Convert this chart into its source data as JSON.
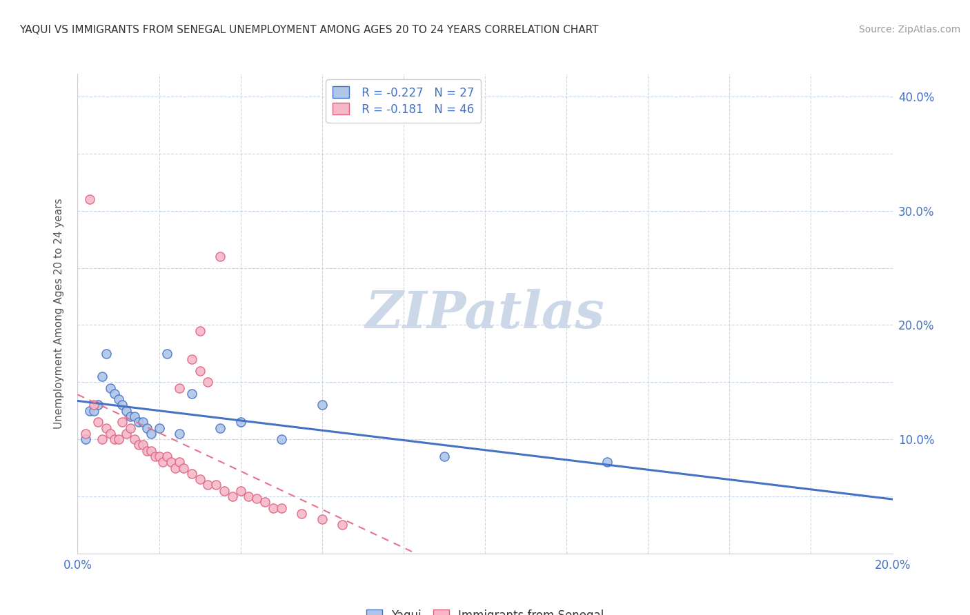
{
  "title": "YAQUI VS IMMIGRANTS FROM SENEGAL UNEMPLOYMENT AMONG AGES 20 TO 24 YEARS CORRELATION CHART",
  "source": "Source: ZipAtlas.com",
  "ylabel": "Unemployment Among Ages 20 to 24 years",
  "xmin": 0.0,
  "xmax": 0.2,
  "ymin": 0.0,
  "ymax": 0.42,
  "xtick_positions": [
    0.0,
    0.02,
    0.04,
    0.06,
    0.08,
    0.1,
    0.12,
    0.14,
    0.16,
    0.18,
    0.2
  ],
  "ytick_positions": [
    0.0,
    0.05,
    0.1,
    0.15,
    0.2,
    0.25,
    0.3,
    0.35,
    0.4
  ],
  "legend_r1": "R = -0.227",
  "legend_n1": "N = 27",
  "legend_r2": "R = -0.181",
  "legend_n2": "N = 46",
  "legend_label1": "Yaqui",
  "legend_label2": "Immigrants from Senegal",
  "yaqui_fill": "#aec6e8",
  "yaqui_edge": "#4472c4",
  "senegal_fill": "#f4b8c8",
  "senegal_edge": "#e06080",
  "yaqui_line_color": "#4472c4",
  "senegal_line_color": "#e87090",
  "watermark": "ZIPatlas",
  "watermark_color": "#ccd8e8",
  "yaqui_x": [
    0.002,
    0.003,
    0.004,
    0.005,
    0.006,
    0.007,
    0.008,
    0.009,
    0.01,
    0.011,
    0.012,
    0.013,
    0.014,
    0.015,
    0.016,
    0.017,
    0.018,
    0.02,
    0.022,
    0.025,
    0.028,
    0.035,
    0.04,
    0.05,
    0.06,
    0.09,
    0.13
  ],
  "yaqui_y": [
    0.1,
    0.125,
    0.125,
    0.13,
    0.155,
    0.175,
    0.145,
    0.14,
    0.135,
    0.13,
    0.125,
    0.12,
    0.12,
    0.115,
    0.115,
    0.11,
    0.105,
    0.11,
    0.175,
    0.105,
    0.14,
    0.11,
    0.115,
    0.1,
    0.13,
    0.085,
    0.08
  ],
  "senegal_x": [
    0.002,
    0.003,
    0.004,
    0.005,
    0.006,
    0.007,
    0.008,
    0.009,
    0.01,
    0.011,
    0.012,
    0.013,
    0.014,
    0.015,
    0.016,
    0.017,
    0.018,
    0.019,
    0.02,
    0.021,
    0.022,
    0.023,
    0.024,
    0.025,
    0.026,
    0.028,
    0.03,
    0.032,
    0.034,
    0.036,
    0.038,
    0.04,
    0.042,
    0.044,
    0.046,
    0.048,
    0.05,
    0.055,
    0.06,
    0.065,
    0.035,
    0.03,
    0.028,
    0.03,
    0.032,
    0.025
  ],
  "senegal_y": [
    0.105,
    0.31,
    0.13,
    0.115,
    0.1,
    0.11,
    0.105,
    0.1,
    0.1,
    0.115,
    0.105,
    0.11,
    0.1,
    0.095,
    0.095,
    0.09,
    0.09,
    0.085,
    0.085,
    0.08,
    0.085,
    0.08,
    0.075,
    0.08,
    0.075,
    0.07,
    0.065,
    0.06,
    0.06,
    0.055,
    0.05,
    0.055,
    0.05,
    0.048,
    0.045,
    0.04,
    0.04,
    0.035,
    0.03,
    0.025,
    0.26,
    0.195,
    0.17,
    0.16,
    0.15,
    0.145
  ]
}
